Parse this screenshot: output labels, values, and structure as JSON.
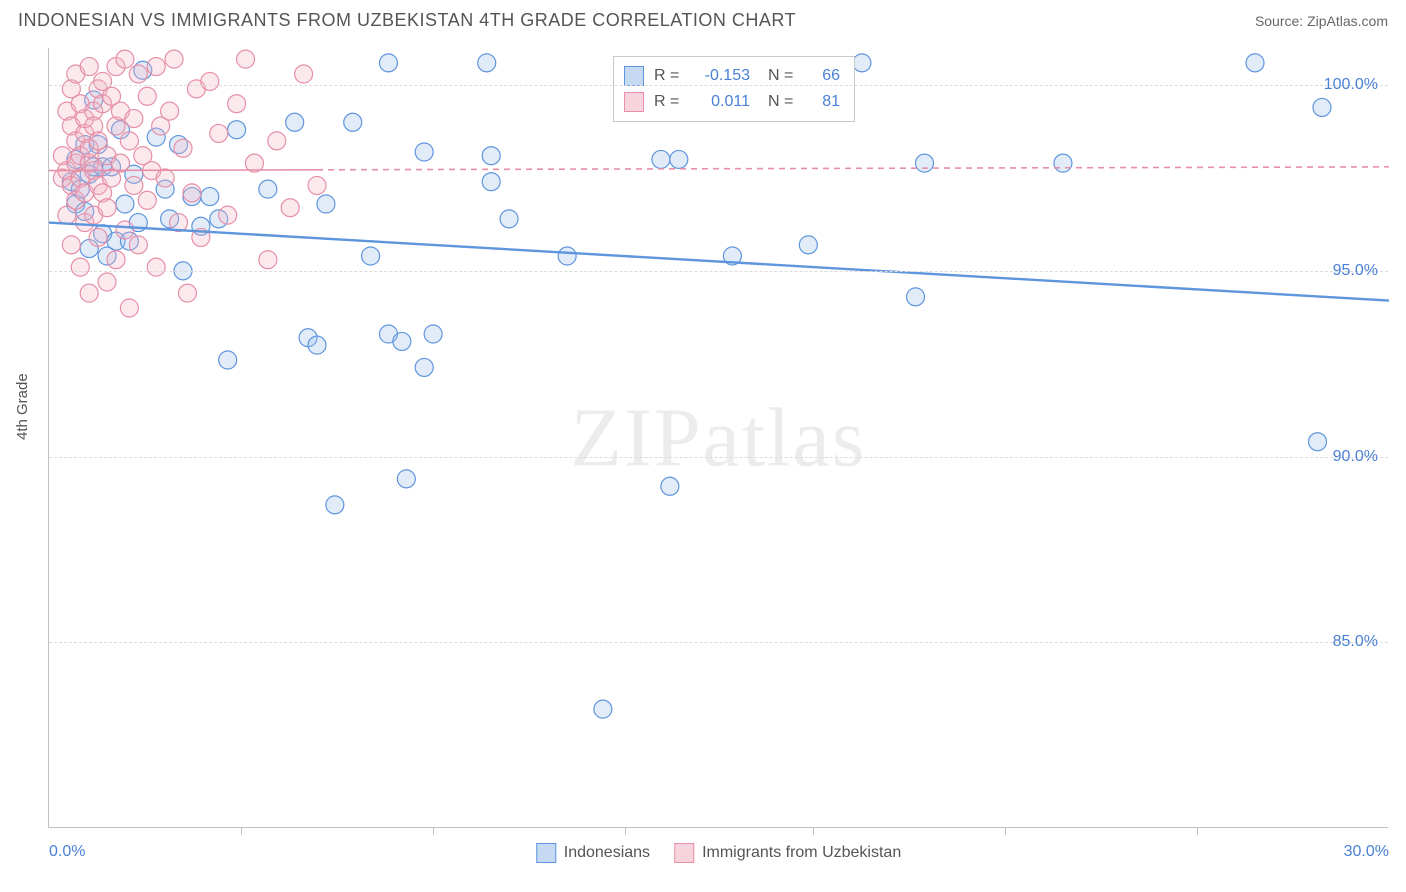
{
  "title": "INDONESIAN VS IMMIGRANTS FROM UZBEKISTAN 4TH GRADE CORRELATION CHART",
  "source": "Source: ZipAtlas.com",
  "watermark": "ZIPatlas",
  "chart": {
    "type": "scatter",
    "y_axis_label": "4th Grade",
    "background_color": "#ffffff",
    "grid_color": "#dcdcdc",
    "axis_color": "#c0c0c0",
    "tick_label_color": "#4a80d6",
    "tick_fontsize": 16,
    "xlim": [
      0,
      30
    ],
    "ylim": [
      80,
      101
    ],
    "xticks": [
      0,
      30
    ],
    "xtick_labels": [
      "0.0%",
      "30.0%"
    ],
    "x_minor_ticks": [
      4.3,
      8.6,
      12.9,
      17.1,
      21.4,
      25.7
    ],
    "yticks": [
      85,
      90,
      95,
      100
    ],
    "ytick_labels": [
      "85.0%",
      "90.0%",
      "95.0%",
      "100.0%"
    ],
    "marker_radius": 9,
    "marker_stroke_width": 1.2,
    "marker_fill_opacity": 0.3,
    "series": [
      {
        "name": "Indonesians",
        "color_stroke": "#5e95dd",
        "color_fill": "#9fc1ea",
        "R": "-0.153",
        "N": "66",
        "trend": {
          "y_start": 96.3,
          "y_end": 94.2,
          "width": 2.4,
          "dash": null
        },
        "points": [
          [
            0.5,
            97.4
          ],
          [
            0.6,
            96.8
          ],
          [
            0.6,
            98.0
          ],
          [
            0.7,
            97.2
          ],
          [
            0.8,
            98.4
          ],
          [
            0.8,
            96.6
          ],
          [
            0.9,
            95.6
          ],
          [
            0.9,
            97.6
          ],
          [
            1.0,
            97.8
          ],
          [
            1.0,
            99.6
          ],
          [
            1.1,
            98.4
          ],
          [
            1.2,
            96.0
          ],
          [
            1.2,
            97.8
          ],
          [
            1.3,
            95.4
          ],
          [
            1.4,
            97.8
          ],
          [
            1.5,
            95.8
          ],
          [
            1.6,
            98.8
          ],
          [
            1.7,
            96.8
          ],
          [
            1.8,
            95.8
          ],
          [
            1.9,
            97.6
          ],
          [
            2.0,
            96.3
          ],
          [
            2.1,
            100.4
          ],
          [
            2.4,
            98.6
          ],
          [
            2.6,
            97.2
          ],
          [
            2.7,
            96.4
          ],
          [
            2.9,
            98.4
          ],
          [
            3.0,
            95.0
          ],
          [
            3.2,
            97.0
          ],
          [
            3.4,
            96.2
          ],
          [
            3.6,
            97.0
          ],
          [
            3.8,
            96.4
          ],
          [
            4.0,
            92.6
          ],
          [
            4.2,
            98.8
          ],
          [
            4.9,
            97.2
          ],
          [
            5.5,
            99.0
          ],
          [
            5.8,
            93.2
          ],
          [
            6.0,
            93.0
          ],
          [
            6.2,
            96.8
          ],
          [
            6.4,
            88.7
          ],
          [
            6.8,
            99.0
          ],
          [
            7.2,
            95.4
          ],
          [
            7.6,
            100.6
          ],
          [
            7.6,
            93.3
          ],
          [
            7.9,
            93.1
          ],
          [
            8.0,
            89.4
          ],
          [
            8.4,
            98.2
          ],
          [
            8.4,
            92.4
          ],
          [
            8.6,
            93.3
          ],
          [
            9.8,
            100.6
          ],
          [
            9.9,
            97.4
          ],
          [
            9.9,
            98.1
          ],
          [
            10.3,
            96.4
          ],
          [
            11.6,
            95.4
          ],
          [
            12.4,
            83.2
          ],
          [
            13.7,
            98.0
          ],
          [
            13.9,
            89.2
          ],
          [
            14.1,
            98.0
          ],
          [
            15.3,
            95.4
          ],
          [
            17.0,
            95.7
          ],
          [
            18.2,
            100.6
          ],
          [
            19.4,
            94.3
          ],
          [
            19.6,
            97.9
          ],
          [
            22.7,
            97.9
          ],
          [
            27.0,
            100.6
          ],
          [
            28.5,
            99.4
          ],
          [
            28.4,
            90.4
          ]
        ]
      },
      {
        "name": "Immigrants from Uzbekistan",
        "color_stroke": "#e68fa7",
        "color_fill": "#f2b7c6",
        "R": "0.011",
        "N": "81",
        "trend": {
          "y_start": 97.7,
          "y_end": 97.8,
          "width": 1.6,
          "dash": "6 5"
        },
        "trend_solid_until_x": 6.0,
        "points": [
          [
            0.3,
            97.5
          ],
          [
            0.3,
            98.1
          ],
          [
            0.4,
            97.7
          ],
          [
            0.4,
            99.3
          ],
          [
            0.4,
            96.5
          ],
          [
            0.5,
            98.9
          ],
          [
            0.5,
            97.3
          ],
          [
            0.5,
            99.9
          ],
          [
            0.5,
            95.7
          ],
          [
            0.6,
            98.5
          ],
          [
            0.6,
            97.9
          ],
          [
            0.6,
            100.3
          ],
          [
            0.6,
            96.9
          ],
          [
            0.7,
            98.1
          ],
          [
            0.7,
            99.5
          ],
          [
            0.7,
            97.5
          ],
          [
            0.7,
            95.1
          ],
          [
            0.8,
            98.7
          ],
          [
            0.8,
            97.1
          ],
          [
            0.8,
            99.1
          ],
          [
            0.8,
            96.3
          ],
          [
            0.9,
            97.9
          ],
          [
            0.9,
            100.5
          ],
          [
            0.9,
            98.3
          ],
          [
            0.9,
            94.4
          ],
          [
            1.0,
            97.7
          ],
          [
            1.0,
            99.3
          ],
          [
            1.0,
            96.5
          ],
          [
            1.0,
            98.9
          ],
          [
            1.1,
            97.3
          ],
          [
            1.1,
            99.9
          ],
          [
            1.1,
            95.9
          ],
          [
            1.1,
            98.5
          ],
          [
            1.2,
            100.1
          ],
          [
            1.2,
            97.1
          ],
          [
            1.2,
            99.5
          ],
          [
            1.3,
            94.7
          ],
          [
            1.3,
            98.1
          ],
          [
            1.3,
            96.7
          ],
          [
            1.4,
            99.7
          ],
          [
            1.4,
            97.5
          ],
          [
            1.5,
            100.5
          ],
          [
            1.5,
            98.9
          ],
          [
            1.5,
            95.3
          ],
          [
            1.6,
            97.9
          ],
          [
            1.6,
            99.3
          ],
          [
            1.7,
            96.1
          ],
          [
            1.7,
            100.7
          ],
          [
            1.8,
            98.5
          ],
          [
            1.8,
            94.0
          ],
          [
            1.9,
            97.3
          ],
          [
            1.9,
            99.1
          ],
          [
            2.0,
            95.7
          ],
          [
            2.0,
            100.3
          ],
          [
            2.1,
            98.1
          ],
          [
            2.2,
            96.9
          ],
          [
            2.2,
            99.7
          ],
          [
            2.3,
            97.7
          ],
          [
            2.4,
            100.5
          ],
          [
            2.4,
            95.1
          ],
          [
            2.5,
            98.9
          ],
          [
            2.6,
            97.5
          ],
          [
            2.7,
            99.3
          ],
          [
            2.8,
            100.7
          ],
          [
            2.9,
            96.3
          ],
          [
            3.0,
            98.3
          ],
          [
            3.1,
            94.4
          ],
          [
            3.2,
            97.1
          ],
          [
            3.3,
            99.9
          ],
          [
            3.4,
            95.9
          ],
          [
            3.6,
            100.1
          ],
          [
            3.8,
            98.7
          ],
          [
            4.0,
            96.5
          ],
          [
            4.2,
            99.5
          ],
          [
            4.4,
            100.7
          ],
          [
            4.6,
            97.9
          ],
          [
            4.9,
            95.3
          ],
          [
            5.1,
            98.5
          ],
          [
            5.4,
            96.7
          ],
          [
            5.7,
            100.3
          ],
          [
            6.0,
            97.3
          ]
        ]
      }
    ]
  }
}
